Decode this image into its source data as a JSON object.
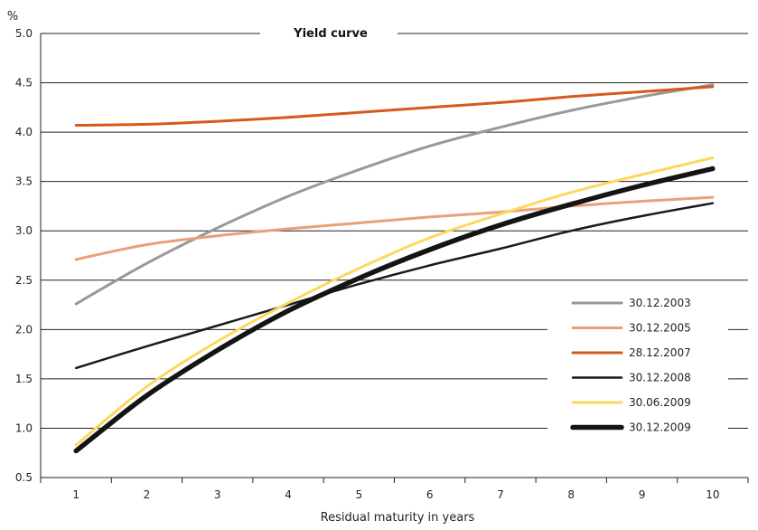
{
  "chart_data": {
    "type": "line",
    "title": "Yield curve",
    "ylabel": "%",
    "xlabel": "Residual maturity in years",
    "x": [
      1,
      2,
      3,
      4,
      5,
      6,
      7,
      8,
      9,
      10
    ],
    "xlim": [
      0.5,
      10.5
    ],
    "ylim": [
      0.5,
      5.0
    ],
    "yticks": [
      "0.5",
      "1.0",
      "1.5",
      "2.0",
      "2.5",
      "3.0",
      "3.5",
      "4.0",
      "4.5",
      "5.0"
    ],
    "xticks": [
      "1",
      "2",
      "3",
      "4",
      "5",
      "6",
      "7",
      "8",
      "9",
      "10"
    ],
    "grid": "horizontal",
    "legend_position": "bottom-right",
    "series": [
      {
        "name": "30.12.2003",
        "color": "#999999",
        "values": [
          2.26,
          2.67,
          3.03,
          3.35,
          3.62,
          3.86,
          4.05,
          4.22,
          4.36,
          4.48
        ]
      },
      {
        "name": "30.12.2005",
        "color": "#e8a07a",
        "values": [
          2.71,
          2.86,
          2.95,
          3.02,
          3.08,
          3.14,
          3.19,
          3.25,
          3.3,
          3.34
        ]
      },
      {
        "name": "28.12.2007",
        "color": "#d55a1e",
        "values": [
          4.07,
          4.08,
          4.11,
          4.15,
          4.2,
          4.25,
          4.3,
          4.36,
          4.41,
          4.46
        ]
      },
      {
        "name": "30.12.2008",
        "color": "#1a1a1a",
        "values": [
          1.61,
          1.83,
          2.04,
          2.25,
          2.46,
          2.65,
          2.82,
          3.0,
          3.15,
          3.28
        ]
      },
      {
        "name": "30.06.2009",
        "color": "#ffd75e",
        "values": [
          0.83,
          1.42,
          1.88,
          2.27,
          2.62,
          2.93,
          3.17,
          3.39,
          3.57,
          3.74
        ]
      },
      {
        "name": "30.12.2009",
        "color": "#141414",
        "values": [
          0.77,
          1.33,
          1.79,
          2.19,
          2.52,
          2.81,
          3.06,
          3.27,
          3.46,
          3.63
        ]
      }
    ]
  }
}
